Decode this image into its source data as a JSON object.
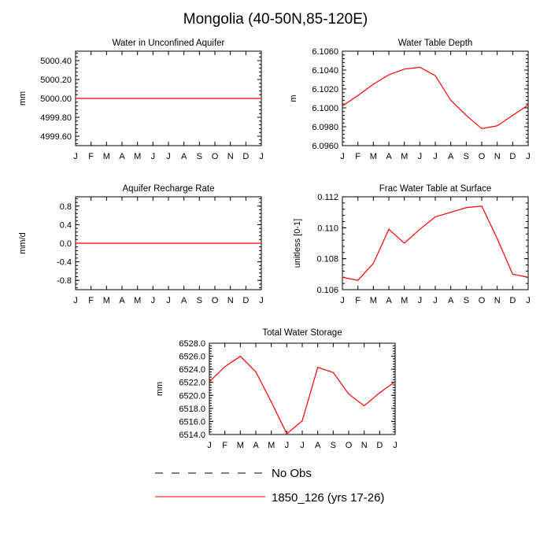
{
  "title": "Mongolia (40-50N,85-120E)",
  "colors": {
    "series": "#ff0000",
    "axis": "#000000"
  },
  "legend": [
    {
      "label": "No Obs",
      "style": "dashed",
      "color": "#000000"
    },
    {
      "label": "1850_126 (yrs 17-26)",
      "style": "solid",
      "color": "#ff0000"
    }
  ],
  "chart_data": [
    {
      "type": "line",
      "title": "Water in Unconfined Aquifer",
      "xlabel": "",
      "ylabel": "mm",
      "categories": [
        "J",
        "F",
        "M",
        "A",
        "M",
        "J",
        "J",
        "A",
        "S",
        "O",
        "N",
        "D",
        "J"
      ],
      "ylim": [
        4999.5,
        5000.5
      ],
      "yticks": [
        "4999.60",
        "4999.80",
        "5000.00",
        "5000.20",
        "5000.40"
      ],
      "yminor": 4,
      "series": [
        {
          "values": [
            5000,
            5000,
            5000,
            5000,
            5000,
            5000,
            5000,
            5000,
            5000,
            5000,
            5000,
            5000,
            5000
          ]
        }
      ]
    },
    {
      "type": "line",
      "title": "Water Table Depth",
      "xlabel": "",
      "ylabel": "m",
      "categories": [
        "J",
        "F",
        "M",
        "A",
        "M",
        "J",
        "J",
        "A",
        "S",
        "O",
        "N",
        "D",
        "J"
      ],
      "ylim": [
        6.096,
        6.106
      ],
      "yticks": [
        "6.0960",
        "6.0980",
        "6.1000",
        "6.1020",
        "6.1040",
        "6.1060"
      ],
      "yminor": 4,
      "series": [
        {
          "values": [
            6.1002,
            6.1013,
            6.1025,
            6.1035,
            6.1041,
            6.1043,
            6.1034,
            6.1008,
            6.0992,
            6.0978,
            6.0981,
            6.0992,
            6.1003
          ]
        }
      ]
    },
    {
      "type": "line",
      "title": "Aquifer Recharge Rate",
      "xlabel": "",
      "ylabel": "mm/d",
      "categories": [
        "J",
        "F",
        "M",
        "A",
        "M",
        "J",
        "J",
        "A",
        "S",
        "O",
        "N",
        "D",
        "J"
      ],
      "ylim": [
        -1.0,
        1.0
      ],
      "yticks": [
        "-0.8",
        "-0.4",
        "0.0",
        "0.4",
        "0.8"
      ],
      "yminor": 4,
      "series": [
        {
          "values": [
            0,
            0,
            0,
            0,
            0,
            0,
            0,
            0,
            0,
            0,
            0,
            0,
            0
          ]
        }
      ]
    },
    {
      "type": "line",
      "title": "Frac Water Table at Surface",
      "xlabel": "",
      "ylabel": "unitless [0-1]",
      "categories": [
        "J",
        "F",
        "M",
        "A",
        "M",
        "J",
        "J",
        "A",
        "S",
        "O",
        "N",
        "D",
        "J"
      ],
      "ylim": [
        0.106,
        0.112
      ],
      "yticks": [
        "0.106",
        "0.108",
        "0.110",
        "0.112"
      ],
      "yminor": 4,
      "series": [
        {
          "values": [
            0.1068,
            0.1066,
            0.1077,
            0.1099,
            0.109,
            0.1099,
            0.1107,
            0.111,
            0.1113,
            0.1114,
            0.1093,
            0.107,
            0.1068
          ]
        }
      ]
    },
    {
      "type": "line",
      "title": "Total Water Storage",
      "xlabel": "",
      "ylabel": "mm",
      "categories": [
        "J",
        "F",
        "M",
        "A",
        "M",
        "J",
        "J",
        "A",
        "S",
        "O",
        "N",
        "D",
        "J"
      ],
      "ylim": [
        6514.0,
        6528.0
      ],
      "yticks": [
        "6514.0",
        "6516.0",
        "6518.0",
        "6520.0",
        "6522.0",
        "6524.0",
        "6526.0",
        "6528.0"
      ],
      "yminor": 4,
      "series": [
        {
          "values": [
            6522.1,
            6524.4,
            6526.0,
            6523.6,
            6519.0,
            6514.1,
            6516.1,
            6524.3,
            6523.5,
            6520.2,
            6518.4,
            6520.4,
            6522.1
          ]
        }
      ]
    }
  ]
}
